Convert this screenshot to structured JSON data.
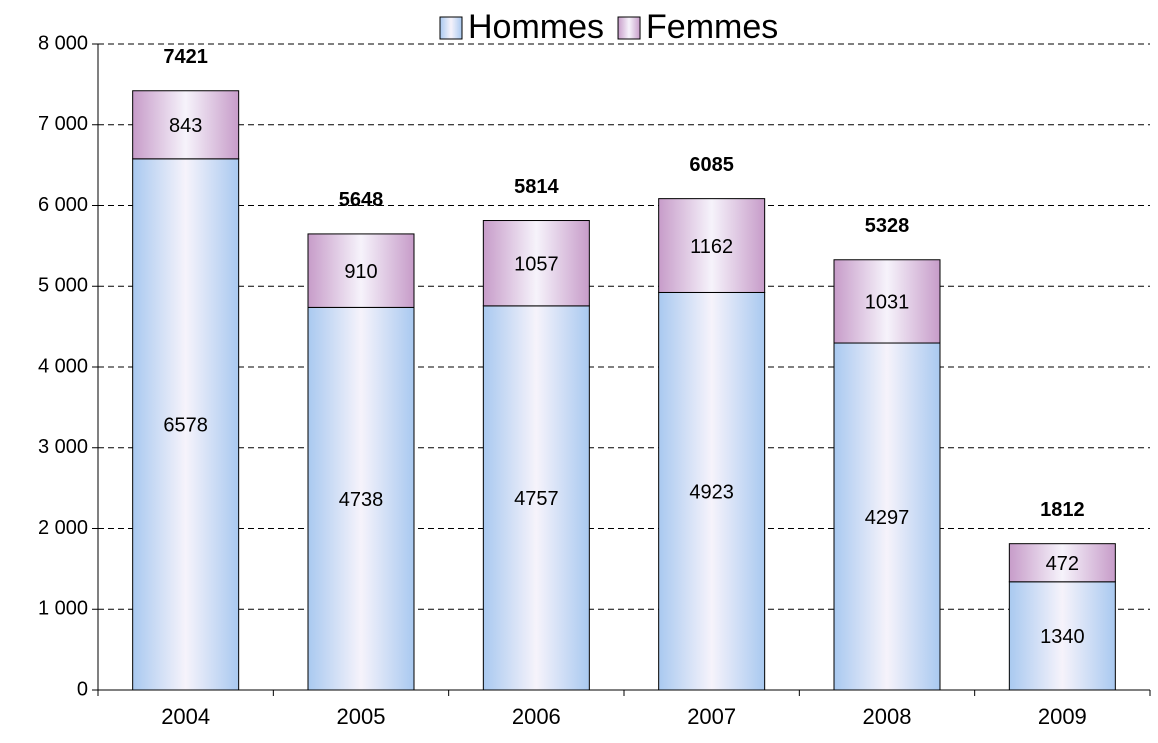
{
  "chart_data": {
    "type": "stacked_bar",
    "categories": [
      "2004",
      "2005",
      "2006",
      "2007",
      "2008",
      "2009"
    ],
    "series": [
      {
        "name": "Hommes",
        "color": "#a9c9f0",
        "values": [
          6578,
          4738,
          4757,
          4923,
          4297,
          1340
        ]
      },
      {
        "name": "Femmes",
        "color": "#c79cc9",
        "values": [
          843,
          910,
          1057,
          1162,
          1031,
          472
        ]
      }
    ],
    "totals": [
      7421,
      5648,
      5814,
      6085,
      5328,
      1812
    ],
    "ylim": [
      0,
      8000
    ],
    "yticks": [
      0,
      {
        "value": 1000,
        "label": "1 000"
      },
      {
        "value": 2000,
        "label": "2 000"
      },
      {
        "value": 3000,
        "label": "3 000"
      },
      {
        "value": 4000,
        "label": "4 000"
      },
      {
        "value": 5000,
        "label": "5 000"
      },
      {
        "value": 6000,
        "label": "6 000"
      },
      {
        "value": 7000,
        "label": "7 000"
      },
      {
        "value": 8000,
        "label": "8 000"
      }
    ],
    "grid": true,
    "legend": "top"
  }
}
